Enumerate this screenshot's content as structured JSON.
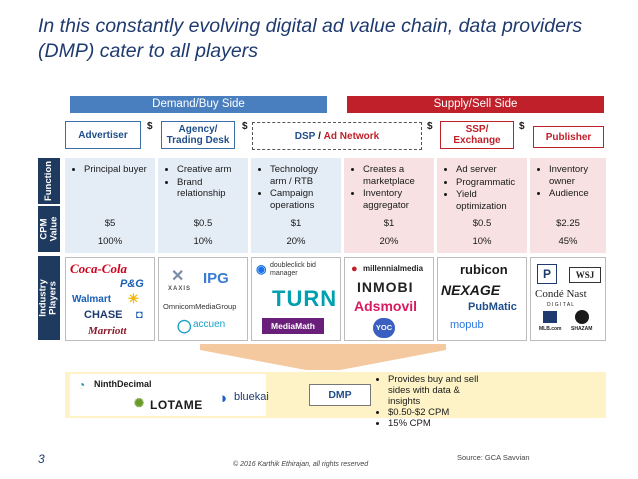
{
  "title": "In this constantly evolving digital ad value chain, data providers (DMP) cater to all players",
  "sides": {
    "demand": "Demand/Buy Side",
    "supply": "Supply/Sell Side"
  },
  "roles": {
    "advertiser": "Advertiser",
    "agency_line1": "Agency/",
    "agency_line2": "Trading Desk",
    "dsp": "DSP",
    "slash": "/",
    "ad_network": "Ad Network",
    "ssp_line1": "SSP/",
    "ssp_line2": "Exchange",
    "publisher": "Publisher"
  },
  "flow_symbol": "$",
  "row_labels": {
    "function": "Function",
    "cpm_line1": "CPM",
    "cpm_line2": "Value",
    "industry_line1": "Industry",
    "industry_line2": "Players"
  },
  "columns": [
    {
      "functions": [
        "Principal buyer"
      ],
      "cpm": "$5",
      "share": "100%"
    },
    {
      "functions": [
        "Creative arm",
        "Brand relationship"
      ],
      "cpm": "$0.5",
      "share": "10%"
    },
    {
      "functions": [
        "Technology arm / RTB",
        "Campaign operations"
      ],
      "cpm": "$1",
      "share": "20%"
    },
    {
      "functions": [
        "Creates a marketplace",
        "Inventory aggregator"
      ],
      "cpm": "$1",
      "share": "20%"
    },
    {
      "functions": [
        "Ad server",
        "Programmatic",
        "Yield optimization"
      ],
      "cpm": "$0.5",
      "share": "10%"
    },
    {
      "functions": [
        "Inventory owner",
        "Audience"
      ],
      "cpm": "$2.25",
      "share": "45%"
    }
  ],
  "logos": {
    "advertiser": [
      "Coca-Cola",
      "P&G",
      "Walmart",
      "CHASE",
      "Marriott"
    ],
    "agency": [
      "XAXIS",
      "IPG",
      "OmnicomMediaGroup",
      "accuen"
    ],
    "dsp": [
      "doubleclick bid manager",
      "TURN",
      "MediaMath"
    ],
    "network": [
      "millennialmedia",
      "INMOBI",
      "Adsmovil",
      "YOC"
    ],
    "ssp": [
      "rubicon",
      "NEXAGE",
      "PubMatic",
      "mopub"
    ],
    "publisher": [
      "WSJ",
      "Condé Nast",
      "D I G I T A L",
      "MLB.com",
      "SHAZAM"
    ],
    "dmp": [
      "NinthDecimal",
      "LOTAME",
      "bluekai"
    ]
  },
  "dmp": {
    "label": "DMP",
    "points": [
      "Provides buy and sell sides with data & insights",
      "$0.50-$2 CPM",
      "15% CPM"
    ]
  },
  "page_number": "3",
  "copyright": "© 2016 Karthik Ethirajan, all rights reserved",
  "source": "Source: GCA Savvian",
  "colors": {
    "demand_bar": "#4a7fbf",
    "supply_bar": "#c0202a",
    "demand_col": "#e4ecf6",
    "supply_col": "#f7e1e2",
    "label_bg": "#1f3a5f",
    "funnel": "#f5c9a0",
    "dmp_box": "#fdf3c7"
  }
}
